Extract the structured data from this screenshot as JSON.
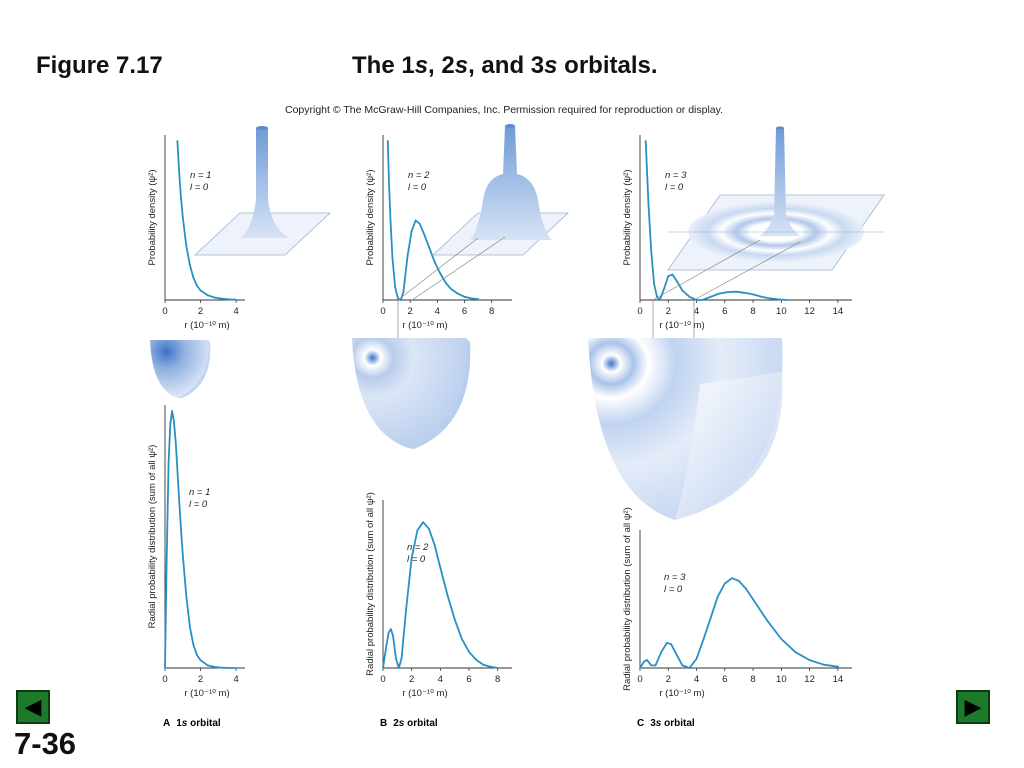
{
  "figure_number": "Figure 7.17",
  "title_parts": [
    "The 1",
    "s",
    ", 2",
    "s",
    ", and 3",
    "s",
    " orbitals."
  ],
  "copyright": "Copyright © The McGraw-Hill Companies, Inc. Permission required for reproduction or display.",
  "slide_number": "7-36",
  "nav": {
    "prev_glyph": "◀",
    "next_glyph": "▶"
  },
  "colors": {
    "curve": "#2a8fc4",
    "orbital_core": "#3a73c9",
    "orbital_light": "#c9daf1",
    "nav_green": "#1d7a2a"
  },
  "common": {
    "x_axis_label": "r (10⁻¹⁰ m)"
  },
  "chart_data": [
    {
      "id": "1s-probability-density",
      "type": "line",
      "ylabel": "Probability density (ψ²)",
      "xlabel": "r (10⁻¹⁰ m)",
      "annotation": [
        "n = 1",
        "l = 0"
      ],
      "xlim": [
        0,
        4.5
      ],
      "ylim": [
        0,
        1.0
      ],
      "xticks": [
        0,
        2,
        4
      ],
      "x": [
        0.7,
        0.8,
        0.9,
        1.0,
        1.2,
        1.4,
        1.6,
        1.8,
        2.0,
        2.4,
        2.8,
        3.2,
        3.6,
        4.0
      ],
      "y": [
        1.0,
        0.8,
        0.64,
        0.52,
        0.34,
        0.22,
        0.14,
        0.09,
        0.06,
        0.03,
        0.015,
        0.008,
        0.004,
        0.002
      ]
    },
    {
      "id": "2s-probability-density",
      "type": "line",
      "ylabel": "Probability density (ψ²)",
      "xlabel": "r (10⁻¹⁰ m)",
      "annotation": [
        "n = 2",
        "l = 0"
      ],
      "xlim": [
        0,
        9.5
      ],
      "ylim": [
        0,
        1.0
      ],
      "xticks": [
        0,
        2,
        4,
        6,
        8
      ],
      "x": [
        0.35,
        0.45,
        0.55,
        0.7,
        0.9,
        1.1,
        1.3,
        1.5,
        1.8,
        2.1,
        2.4,
        2.7,
        3.0,
        3.4,
        3.8,
        4.2,
        4.6,
        5.0,
        5.5,
        6.0,
        6.5,
        7.0
      ],
      "y": [
        1.0,
        0.72,
        0.5,
        0.26,
        0.08,
        0.01,
        0.0,
        0.05,
        0.27,
        0.43,
        0.5,
        0.48,
        0.42,
        0.33,
        0.24,
        0.17,
        0.11,
        0.07,
        0.04,
        0.02,
        0.01,
        0.005
      ]
    },
    {
      "id": "3s-probability-density",
      "type": "line",
      "ylabel": "Probability density (ψ²)",
      "xlabel": "r (10⁻¹⁰ m)",
      "annotation": [
        "n = 3",
        "l = 0"
      ],
      "xlim": [
        0,
        15
      ],
      "ylim": [
        0,
        1.0
      ],
      "xticks": [
        0,
        2,
        4,
        6,
        8,
        10,
        12,
        14
      ],
      "x": [
        0.4,
        0.6,
        0.8,
        1.0,
        1.2,
        1.4,
        1.7,
        2.0,
        2.3,
        2.6,
        3.0,
        3.5,
        4.0,
        4.4,
        5.0,
        5.6,
        6.2,
        6.8,
        7.4,
        8.0,
        8.6,
        9.2,
        9.8,
        10.4
      ],
      "y": [
        1.0,
        0.6,
        0.3,
        0.1,
        0.02,
        0.0,
        0.07,
        0.15,
        0.16,
        0.12,
        0.06,
        0.02,
        0.0,
        0.0,
        0.02,
        0.04,
        0.05,
        0.052,
        0.045,
        0.035,
        0.02,
        0.01,
        0.004,
        0.0
      ]
    },
    {
      "id": "1s-radial-distribution",
      "type": "line",
      "ylabel": "Radial probability distribution (sum of all ψ²)",
      "xlabel": "r (10⁻¹⁰ m)",
      "annotation": [
        "n = 1",
        "l = 0"
      ],
      "xlim": [
        0,
        4.5
      ],
      "ylim": [
        0,
        1.0
      ],
      "xticks": [
        0,
        2,
        4
      ],
      "x": [
        0,
        0.1,
        0.2,
        0.3,
        0.4,
        0.5,
        0.6,
        0.7,
        0.8,
        0.9,
        1.0,
        1.2,
        1.4,
        1.6,
        1.8,
        2.0,
        2.4,
        2.8,
        3.2,
        3.6,
        4.0
      ],
      "y": [
        0.0,
        0.45,
        0.8,
        0.95,
        1.0,
        0.96,
        0.88,
        0.77,
        0.65,
        0.54,
        0.44,
        0.28,
        0.16,
        0.09,
        0.05,
        0.03,
        0.01,
        0.004,
        0.001,
        0.0,
        0.0
      ]
    },
    {
      "id": "2s-radial-distribution",
      "type": "line",
      "ylabel": "Radial probability distribution (sum of all ψ²)",
      "xlabel": "r (10⁻¹⁰ m)",
      "annotation": [
        "n = 2",
        "l = 0"
      ],
      "xlim": [
        0,
        9
      ],
      "ylim": [
        0,
        1.0
      ],
      "xticks": [
        0,
        2,
        4,
        6,
        8
      ],
      "x": [
        0,
        0.2,
        0.4,
        0.55,
        0.7,
        0.9,
        1.1,
        1.3,
        1.6,
        2.0,
        2.4,
        2.8,
        3.2,
        3.6,
        4.0,
        4.5,
        5.0,
        5.5,
        6.0,
        6.5,
        7.0,
        7.5,
        8.0
      ],
      "y": [
        0.0,
        0.12,
        0.22,
        0.24,
        0.2,
        0.06,
        0.0,
        0.06,
        0.35,
        0.68,
        0.85,
        0.9,
        0.86,
        0.76,
        0.62,
        0.45,
        0.3,
        0.18,
        0.1,
        0.05,
        0.02,
        0.008,
        0.0
      ]
    },
    {
      "id": "3s-radial-distribution",
      "type": "line",
      "ylabel": "Radial probability distribution (sum of all ψ²)",
      "xlabel": "r (10⁻¹⁰ m)",
      "annotation": [
        "n = 3",
        "l = 0"
      ],
      "xlim": [
        0,
        15
      ],
      "ylim": [
        0,
        1.0
      ],
      "xticks": [
        0,
        2,
        4,
        6,
        8,
        10,
        12,
        14
      ],
      "x": [
        0,
        0.3,
        0.5,
        0.8,
        1.1,
        1.5,
        1.9,
        2.2,
        2.6,
        3.0,
        3.5,
        4.0,
        4.5,
        5.0,
        5.5,
        6.0,
        6.5,
        7.0,
        7.5,
        8.0,
        9.0,
        10.0,
        11.0,
        12.0,
        13.0,
        14.0
      ],
      "y": [
        0.0,
        0.05,
        0.06,
        0.02,
        0.02,
        0.12,
        0.19,
        0.18,
        0.1,
        0.02,
        0.0,
        0.07,
        0.22,
        0.38,
        0.54,
        0.64,
        0.68,
        0.66,
        0.6,
        0.52,
        0.36,
        0.22,
        0.12,
        0.06,
        0.025,
        0.01
      ]
    }
  ],
  "panels": [
    {
      "letter": "A",
      "label_pre": "1",
      "label_italic": "s",
      "label_post": " orbital"
    },
    {
      "letter": "B",
      "label_pre": "2",
      "label_italic": "s",
      "label_post": " orbital"
    },
    {
      "letter": "C",
      "label_pre": "3",
      "label_italic": "s",
      "label_post": " orbital"
    }
  ]
}
